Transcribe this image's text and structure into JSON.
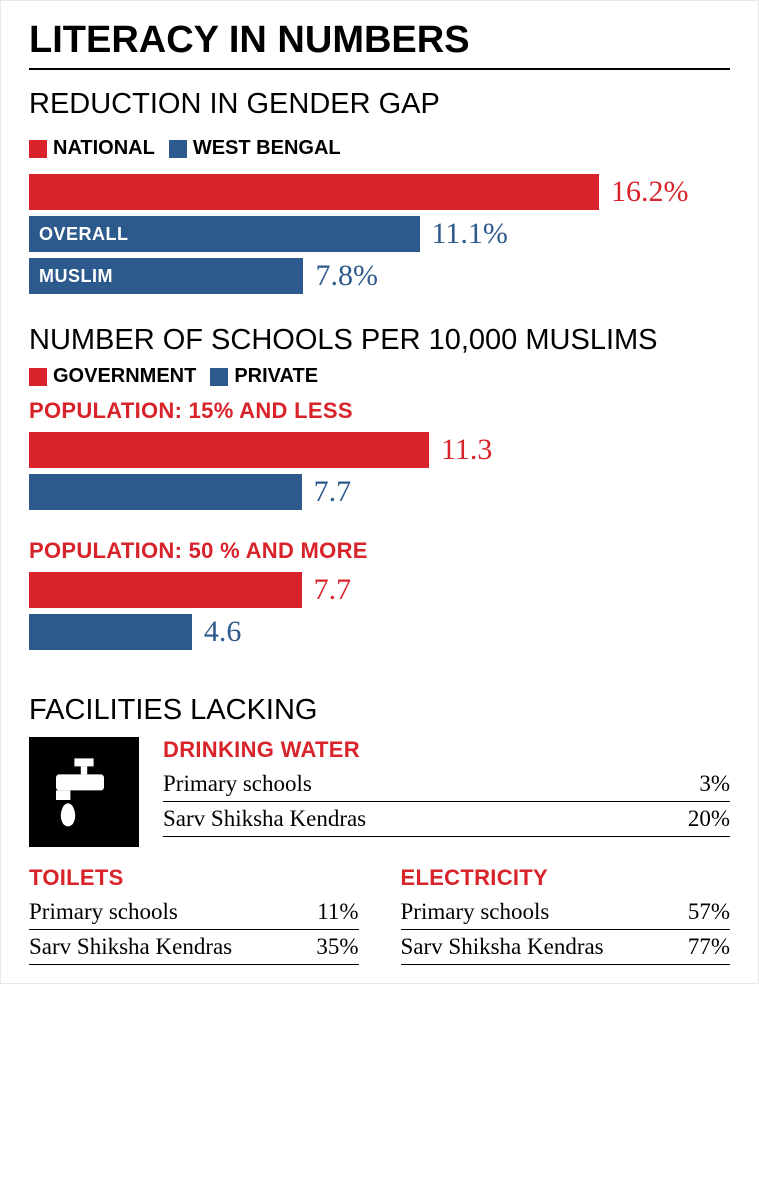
{
  "colors": {
    "red": "#d8232a",
    "blue": "#2d5a8c",
    "black": "#000000",
    "white": "#ffffff"
  },
  "main_title": "LITERACY IN NUMBERS",
  "gender_gap": {
    "heading": "REDUCTION IN GENDER GAP",
    "legend": [
      {
        "label": "NATIONAL",
        "color": "#d8232a"
      },
      {
        "label": "WEST BENGAL",
        "color": "#2d5a8c"
      }
    ],
    "max_value": 16.2,
    "bars": [
      {
        "inline_label": "",
        "value": 16.2,
        "display": "16.2%",
        "color": "#d8232a",
        "value_color": "#d8232a"
      },
      {
        "inline_label": "OVERALL",
        "value": 11.1,
        "display": "11.1%",
        "color": "#2d5a8c",
        "value_color": "#2d5a8c"
      },
      {
        "inline_label": "MUSLIM",
        "value": 7.8,
        "display": "7.8%",
        "color": "#2d5a8c",
        "value_color": "#2d5a8c"
      }
    ]
  },
  "schools": {
    "heading": "NUMBER OF SCHOOLS PER 10,000 MUSLIMS",
    "legend": [
      {
        "label": "GOVERNMENT",
        "color": "#d8232a"
      },
      {
        "label": "PRIVATE",
        "color": "#2d5a8c"
      }
    ],
    "max_value": 11.3,
    "groups": [
      {
        "title": "POPULATION: 15% AND LESS",
        "bars": [
          {
            "value": 11.3,
            "display": "11.3",
            "color": "#d8232a",
            "value_color": "#d8232a"
          },
          {
            "value": 7.7,
            "display": "7.7",
            "color": "#2d5a8c",
            "value_color": "#2d5a8c"
          }
        ]
      },
      {
        "title": "POPULATION: 50 % AND MORE",
        "bars": [
          {
            "value": 7.7,
            "display": "7.7",
            "color": "#d8232a",
            "value_color": "#d8232a"
          },
          {
            "value": 4.6,
            "display": "4.6",
            "color": "#2d5a8c",
            "value_color": "#2d5a8c"
          }
        ]
      }
    ]
  },
  "facilities": {
    "heading": "FACILITIES LACKING",
    "water": {
      "title": "DRINKING WATER",
      "rows": [
        {
          "label": "Primary schools",
          "value": "3%"
        },
        {
          "label": "Sarv Shiksha Kendras",
          "value": "20%"
        }
      ]
    },
    "toilets": {
      "title": "TOILETS",
      "rows": [
        {
          "label": "Primary schools",
          "value": "11%"
        },
        {
          "label": "Sarv Shiksha Kendras",
          "value": "35%"
        }
      ]
    },
    "electricity": {
      "title": "ELECTRICITY",
      "rows": [
        {
          "label": "Primary schools",
          "value": "57%"
        },
        {
          "label": "Sarv Shiksha Kendras",
          "value": "77%"
        }
      ]
    }
  }
}
